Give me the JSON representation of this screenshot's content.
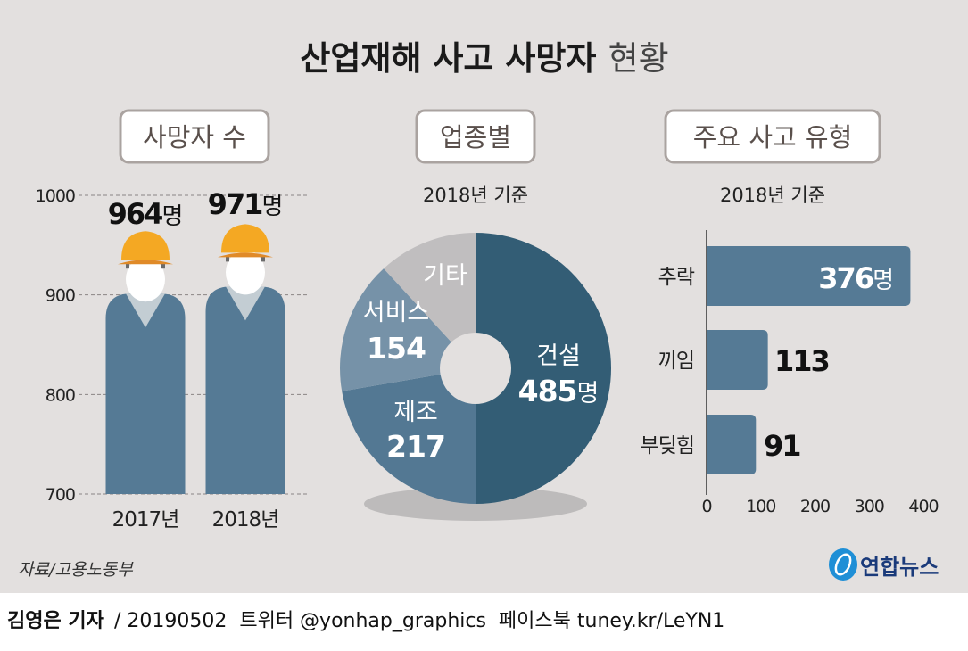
{
  "title": {
    "bold": "산업재해 사고 사망자",
    "light": "현황"
  },
  "sections": {
    "deaths": "사망자 수",
    "industry": "업종별",
    "types": "주요 사고 유형"
  },
  "basis": "2018년 기준",
  "colors": {
    "background": "#e3e0df",
    "figure_body": "#557a95",
    "helmet": "#f4a823",
    "pie": [
      "#335d75",
      "#537893",
      "#7692a8",
      "#c0bebf"
    ],
    "bar": "#557a95"
  },
  "chart_data": [
    {
      "type": "bar",
      "style": "pictogram (worker figures)",
      "categories": [
        "2017년",
        "2018년"
      ],
      "values": [
        964,
        971
      ],
      "data_labels": [
        {
          "num": "964",
          "unit": "명"
        },
        {
          "num": "971",
          "unit": "명"
        }
      ],
      "ylim": [
        700,
        1000
      ],
      "yticks": [
        "700",
        "800",
        "900",
        "1000"
      ],
      "grid": "dashed horizontal"
    },
    {
      "type": "pie",
      "style": "donut",
      "subtitle": "2018년 기준",
      "slices": [
        {
          "label": "건설",
          "value": 485,
          "value_label": "485",
          "unit": "명"
        },
        {
          "label": "제조",
          "value": 217,
          "value_label": "217"
        },
        {
          "label": "서비스",
          "value": 154,
          "value_label": "154"
        },
        {
          "label": "기타",
          "value": 115
        }
      ]
    },
    {
      "type": "bar",
      "orientation": "horizontal",
      "subtitle": "2018년 기준",
      "categories": [
        "추락",
        "끼임",
        "부딪힘"
      ],
      "values": [
        376,
        113,
        91
      ],
      "data_labels": [
        {
          "num": "376",
          "unit": "명"
        },
        {
          "num": "113"
        },
        {
          "num": "91"
        }
      ],
      "xlim": [
        0,
        400
      ],
      "xticks": [
        "0",
        "100",
        "200",
        "300",
        "400"
      ]
    }
  ],
  "source": "자료/고용노동부",
  "logo": "연합뉴스",
  "footer": {
    "author": "김영은 기자",
    "rest": "/ 20190502  트위터 @yonhap_graphics  페이스북 tuney.kr/LeYN1"
  }
}
